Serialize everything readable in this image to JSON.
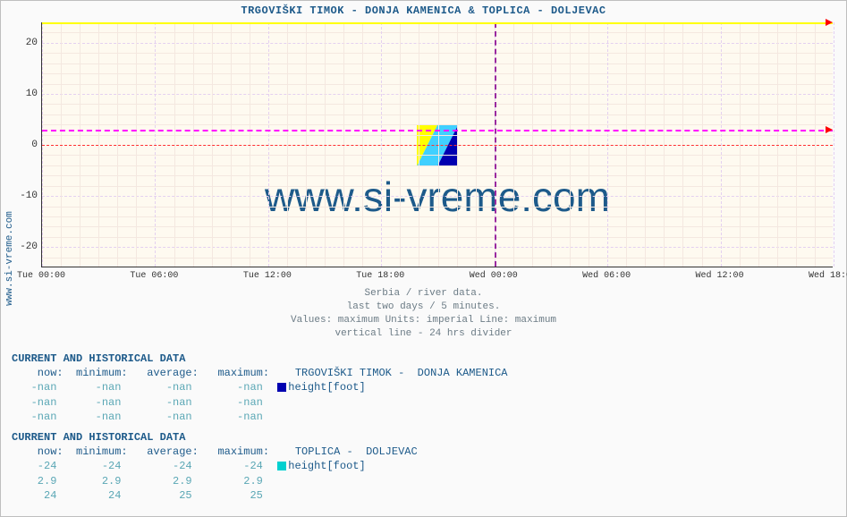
{
  "title": "TRGOVIŠKI TIMOK -  DONJA KAMENICA &  TOPLICA -  DOLJEVAC",
  "side_label": "www.si-vreme.com",
  "watermark": "www.si-vreme.com",
  "chart": {
    "type": "line",
    "background_color": "#fefaf0",
    "axis_color": "#333333",
    "major_grid_color": "#e4d0f0",
    "minor_grid_color": "#f4e8e0",
    "zero_line_color": "#ff3030",
    "divider_line_color": "#9a2aa0",
    "ylim": [
      -24,
      24
    ],
    "yticks": [
      -20,
      -10,
      0,
      10,
      20
    ],
    "xticks": [
      "Tue 00:00",
      "Tue 06:00",
      "Tue 12:00",
      "Tue 18:00",
      "Wed 00:00",
      "Wed 06:00",
      "Wed 12:00",
      "Wed 18:00"
    ],
    "x_divider_index": 4,
    "series": [
      {
        "name": "line_yellow",
        "color": "#ffff00",
        "value": 24,
        "style": "solid"
      },
      {
        "name": "line_magenta",
        "color": "#ff00ff",
        "value": 2.9,
        "style": "dashed"
      }
    ],
    "arrow_color": "#ff0000"
  },
  "subtitle": {
    "l1": "Serbia / river data.",
    "l2": "last two days / 5 minutes.",
    "l3": "Values: maximum  Units: imperial  Line: maximum",
    "l4": "vertical line - 24 hrs  divider"
  },
  "blocks": [
    {
      "header": "CURRENT AND HISTORICAL DATA",
      "station": "TRGOVIŠKI TIMOK -  DONJA KAMENICA",
      "swatch_color": "#0000b0",
      "series_label": "height[foot]",
      "cols": {
        "now": "now:",
        "min": "minimum:",
        "avg": "average:",
        "max": "maximum:"
      },
      "rows": [
        {
          "now": "-nan",
          "min": "-nan",
          "avg": "-nan",
          "max": "-nan"
        },
        {
          "now": "-nan",
          "min": "-nan",
          "avg": "-nan",
          "max": "-nan"
        },
        {
          "now": "-nan",
          "min": "-nan",
          "avg": "-nan",
          "max": "-nan"
        }
      ]
    },
    {
      "header": "CURRENT AND HISTORICAL DATA",
      "station": "TOPLICA -  DOLJEVAC",
      "swatch_color": "#00d0d0",
      "series_label": "height[foot]",
      "cols": {
        "now": "now:",
        "min": "minimum:",
        "avg": "average:",
        "max": "maximum:"
      },
      "rows": [
        {
          "now": "-24",
          "min": "-24",
          "avg": "-24",
          "max": "-24"
        },
        {
          "now": "2.9",
          "min": "2.9",
          "avg": "2.9",
          "max": "2.9"
        },
        {
          "now": "24",
          "min": "24",
          "avg": "25",
          "max": "25"
        }
      ]
    }
  ]
}
